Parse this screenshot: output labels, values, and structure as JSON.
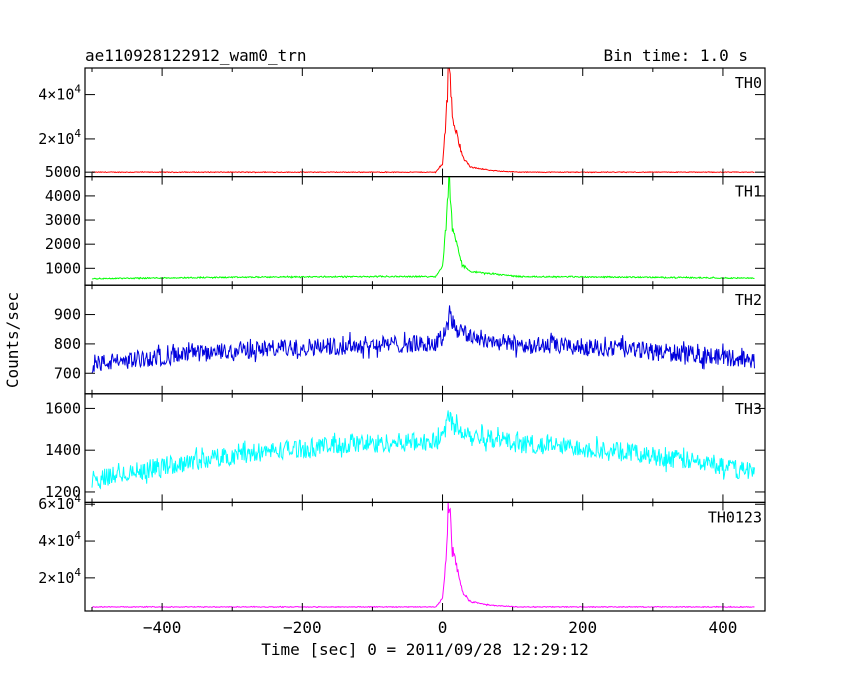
{
  "header": {
    "title": "ae110928122912_wam0_trn",
    "bin_time": "Bin time: 1.0 s"
  },
  "chart_data": {
    "type": "line",
    "xlabel": "Time [sec] 0 = 2011/09/28 12:29:12",
    "ylabel": "Counts/sec",
    "xlim": [
      -510,
      460
    ],
    "x_range": [
      -500,
      445
    ],
    "x_ticks": [
      {
        "value": -400,
        "label": "−400"
      },
      {
        "value": -200,
        "label": "−200"
      },
      {
        "value": 0,
        "label": "0"
      },
      {
        "value": 200,
        "label": "200"
      },
      {
        "value": 400,
        "label": "400"
      }
    ],
    "panels": [
      {
        "name": "TH0",
        "color": "#ff0000",
        "ylim": [
          3000,
          52000
        ],
        "y_ticks": [
          {
            "value": 5000,
            "label": "5000",
            "sup": ""
          },
          {
            "value": 20000,
            "label": "2×10",
            "sup": "4"
          },
          {
            "value": 40000,
            "label": "4×10",
            "sup": "4"
          }
        ],
        "baseline": 5000,
        "trend": 0,
        "noise": 150,
        "peak": 47000,
        "shape": [
          [
            -10,
            0
          ],
          [
            0,
            0.08
          ],
          [
            5,
            0.5
          ],
          [
            8,
            0.9
          ],
          [
            10,
            1.0
          ],
          [
            14,
            0.55
          ],
          [
            20,
            0.4
          ],
          [
            28,
            0.15
          ],
          [
            40,
            0.05
          ],
          [
            70,
            0.015
          ],
          [
            110,
            0
          ]
        ]
      },
      {
        "name": "TH1",
        "color": "#00ff00",
        "ylim": [
          300,
          4800
        ],
        "y_ticks": [
          {
            "value": 1000,
            "label": "1000",
            "sup": ""
          },
          {
            "value": 2000,
            "label": "2000",
            "sup": ""
          },
          {
            "value": 3000,
            "label": "3000",
            "sup": ""
          },
          {
            "value": 4000,
            "label": "4000",
            "sup": ""
          }
        ],
        "baseline": 560,
        "trend": 100,
        "noise": 25,
        "peak": 4100,
        "shape": [
          [
            -10,
            0
          ],
          [
            0,
            0.1
          ],
          [
            5,
            0.5
          ],
          [
            8,
            0.85
          ],
          [
            10,
            1.0
          ],
          [
            14,
            0.5
          ],
          [
            20,
            0.35
          ],
          [
            28,
            0.12
          ],
          [
            40,
            0.05
          ],
          [
            80,
            0.02
          ],
          [
            110,
            0
          ]
        ]
      },
      {
        "name": "TH2",
        "color": "#0000dd",
        "ylim": [
          630,
          1000
        ],
        "y_ticks": [
          {
            "value": 700,
            "label": "700",
            "sup": ""
          },
          {
            "value": 800,
            "label": "800",
            "sup": ""
          },
          {
            "value": 900,
            "label": "900",
            "sup": ""
          }
        ],
        "baseline": 725,
        "trend": 75,
        "noise": 30,
        "peak": 110,
        "shape": [
          [
            -10,
            0
          ],
          [
            0,
            0.2
          ],
          [
            5,
            0.6
          ],
          [
            10,
            1.0
          ],
          [
            16,
            0.6
          ],
          [
            25,
            0.4
          ],
          [
            40,
            0.25
          ],
          [
            70,
            0.1
          ],
          [
            110,
            0
          ]
        ]
      },
      {
        "name": "TH3",
        "color": "#00ffff",
        "ylim": [
          1150,
          1670
        ],
        "y_ticks": [
          {
            "value": 1200,
            "label": "1200",
            "sup": ""
          },
          {
            "value": 1400,
            "label": "1400",
            "sup": ""
          },
          {
            "value": 1600,
            "label": "1600",
            "sup": ""
          }
        ],
        "baseline": 1240,
        "trend": 200,
        "noise": 45,
        "peak": 130,
        "shape": [
          [
            -10,
            0
          ],
          [
            0,
            0.25
          ],
          [
            5,
            0.6
          ],
          [
            10,
            1.0
          ],
          [
            18,
            0.6
          ],
          [
            30,
            0.4
          ],
          [
            50,
            0.25
          ],
          [
            80,
            0.1
          ],
          [
            110,
            0
          ]
        ]
      },
      {
        "name": "TH0123",
        "color": "#ff00ff",
        "ylim": [
          2000,
          61000
        ],
        "y_ticks": [
          {
            "value": 20000,
            "label": "2×10",
            "sup": "4"
          },
          {
            "value": 40000,
            "label": "4×10",
            "sup": "4"
          },
          {
            "value": 60000,
            "label": "6×10",
            "sup": "4"
          }
        ],
        "baseline": 4200,
        "trend": 0,
        "noise": 200,
        "peak": 56000,
        "shape": [
          [
            -10,
            0
          ],
          [
            0,
            0.08
          ],
          [
            5,
            0.5
          ],
          [
            8,
            0.9
          ],
          [
            10,
            1.0
          ],
          [
            14,
            0.55
          ],
          [
            20,
            0.4
          ],
          [
            28,
            0.15
          ],
          [
            40,
            0.05
          ],
          [
            70,
            0.015
          ],
          [
            110,
            0
          ]
        ]
      }
    ]
  }
}
